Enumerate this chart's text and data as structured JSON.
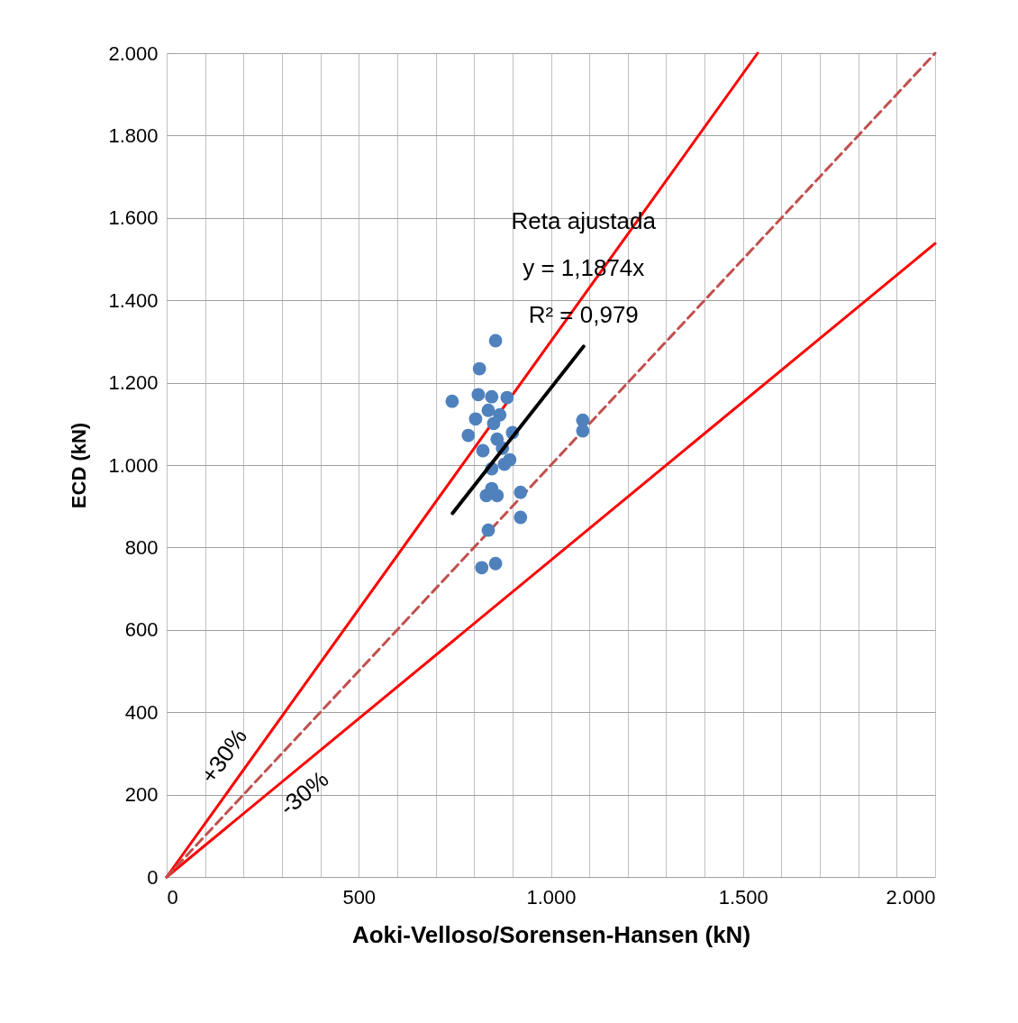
{
  "chart_data": {
    "type": "scatter",
    "xlabel": "Aoki-Velloso/Sorensen-Hansen (kN)",
    "ylabel": "ECD (kN)",
    "xlim": [
      0,
      2000
    ],
    "ylim": [
      0,
      2000
    ],
    "xticks": [
      0,
      {
        "value": 100,
        "label": null
      },
      {
        "value": 200,
        "label": null
      },
      {
        "value": 300,
        "label": null
      },
      {
        "value": 400,
        "label": null
      },
      500,
      {
        "value": 600,
        "label": null
      },
      {
        "value": 700,
        "label": null
      },
      {
        "value": 800,
        "label": null
      },
      {
        "value": 900,
        "label": null
      },
      {
        "value": 1000,
        "label": "1.000"
      },
      {
        "value": 1100,
        "label": null
      },
      {
        "value": 1200,
        "label": null
      },
      {
        "value": 1300,
        "label": null
      },
      {
        "value": 1400,
        "label": null
      },
      {
        "value": 1500,
        "label": "1.500"
      },
      {
        "value": 1600,
        "label": null
      },
      {
        "value": 1700,
        "label": null
      },
      {
        "value": 1800,
        "label": null
      },
      {
        "value": 1900,
        "label": null
      },
      {
        "value": 2000,
        "label": "2.000"
      }
    ],
    "yticks": [
      0,
      200,
      400,
      600,
      800,
      {
        "value": 1000,
        "label": "1.000"
      },
      {
        "value": 1200,
        "label": "1.200"
      },
      {
        "value": 1400,
        "label": "1.400"
      },
      {
        "value": 1600,
        "label": "1.600"
      },
      {
        "value": 1800,
        "label": "1.800"
      },
      {
        "value": 2000,
        "label": "2.000"
      }
    ],
    "grid": true,
    "series": [
      {
        "type": "line",
        "color": "#ff0000",
        "line_style": "solid",
        "x": [
          0,
          1538
        ],
        "values": [
          0,
          2000
        ]
      },
      {
        "type": "line",
        "color": "#ff0000",
        "line_style": "solid",
        "x": [
          0,
          2000
        ],
        "values": [
          0,
          1538
        ]
      },
      {
        "type": "line",
        "color": "#c0504d",
        "line_style": "dashed",
        "x": [
          0,
          2000
        ],
        "values": [
          0,
          2000
        ]
      },
      {
        "marker": "circle",
        "color": "#4f81bd",
        "x": [
          856,
          814,
          743,
          811,
          846,
          886,
          837,
          867,
          804,
          785,
          851,
          860,
          900,
          823,
          874,
          846,
          893,
          879,
          832,
          860,
          846,
          921,
          921,
          837,
          820,
          856,
          1083,
          1083
        ],
        "values": [
          1302,
          1234,
          1155,
          1171,
          1166,
          1164,
          1133,
          1122,
          1112,
          1072,
          1101,
          1063,
          1079,
          1035,
          1041,
          991,
          1013,
          1002,
          926,
          926,
          943,
          934,
          873,
          842,
          751,
          761,
          1109,
          1083
        ]
      },
      {
        "type": "line",
        "color": "#000000",
        "line_style": "solid",
        "x": [
          744,
          1085
        ],
        "values": [
          883,
          1288
        ]
      }
    ],
    "annotations": [
      "Reta ajustada",
      "y = 1,1874x",
      "R² = 0,979",
      "+30%",
      "-30%"
    ]
  }
}
